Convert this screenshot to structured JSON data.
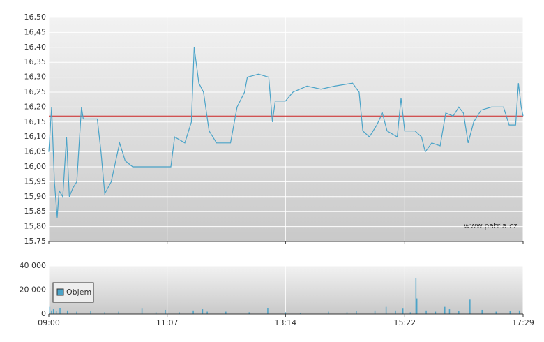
{
  "chart_data": [
    {
      "type": "line",
      "color": "#4aa3c8",
      "reference_line": 16.17,
      "reference_color": "#cc2222",
      "watermark": "www.patria.cz",
      "x": [
        "09:00",
        "09:03",
        "09:06",
        "09:09",
        "09:11",
        "09:15",
        "09:19",
        "09:22",
        "09:26",
        "09:30",
        "09:35",
        "09:37",
        "09:45",
        "09:52",
        "09:56",
        "10:00",
        "10:07",
        "10:16",
        "10:22",
        "10:30",
        "11:11",
        "11:15",
        "11:26",
        "11:33",
        "11:36",
        "11:41",
        "11:46",
        "11:52",
        "12:00",
        "12:15",
        "12:22",
        "12:30",
        "12:33",
        "12:45",
        "12:56",
        "13:00",
        "13:03",
        "13:14",
        "13:22",
        "13:37",
        "13:52",
        "14:07",
        "14:26",
        "14:33",
        "14:37",
        "14:44",
        "14:52",
        "14:58",
        "15:03",
        "15:14",
        "15:18",
        "15:22",
        "15:33",
        "15:40",
        "15:44",
        "15:51",
        "16:00",
        "16:06",
        "16:14",
        "16:20",
        "16:25",
        "16:30",
        "16:36",
        "16:44",
        "16:55",
        "17:08",
        "17:14",
        "17:21",
        "17:24",
        "17:27",
        "17:29"
      ],
      "values": [
        16.05,
        16.2,
        15.95,
        15.83,
        15.92,
        15.9,
        16.1,
        15.9,
        15.93,
        15.95,
        16.2,
        16.16,
        16.16,
        16.16,
        16.05,
        15.91,
        15.95,
        16.08,
        16.02,
        16.0,
        16.0,
        16.1,
        16.08,
        16.15,
        16.4,
        16.28,
        16.25,
        16.12,
        16.08,
        16.08,
        16.2,
        16.25,
        16.3,
        16.31,
        16.3,
        16.15,
        16.22,
        16.22,
        16.25,
        16.27,
        16.26,
        16.27,
        16.28,
        16.25,
        16.12,
        16.1,
        16.14,
        16.18,
        16.12,
        16.1,
        16.23,
        16.12,
        16.12,
        16.1,
        16.05,
        16.08,
        16.07,
        16.18,
        16.17,
        16.2,
        16.18,
        16.08,
        16.15,
        16.19,
        16.2,
        16.2,
        16.14,
        16.14,
        16.28,
        16.2,
        16.17
      ],
      "xlim": [
        "09:00",
        "17:29"
      ],
      "ylim": [
        15.75,
        16.5
      ],
      "yticks": [
        {
          "value": 15.75,
          "label": "15,75"
        },
        {
          "value": 15.8,
          "label": "15,80"
        },
        {
          "value": 15.85,
          "label": "15,85"
        },
        {
          "value": 15.9,
          "label": "15,90"
        },
        {
          "value": 15.95,
          "label": "15,95"
        },
        {
          "value": 16.0,
          "label": "16,00"
        },
        {
          "value": 16.05,
          "label": "16,05"
        },
        {
          "value": 16.1,
          "label": "16,10"
        },
        {
          "value": 16.15,
          "label": "16,15"
        },
        {
          "value": 16.2,
          "label": "16,20"
        },
        {
          "value": 16.25,
          "label": "16,25"
        },
        {
          "value": 16.3,
          "label": "16,30"
        },
        {
          "value": 16.35,
          "label": "16,35"
        },
        {
          "value": 16.4,
          "label": "16,40"
        },
        {
          "value": 16.45,
          "label": "16,45"
        },
        {
          "value": 16.5,
          "label": "16,50"
        }
      ],
      "grid": true
    },
    {
      "type": "bar",
      "x": [
        "09:01",
        "09:03",
        "09:05",
        "09:08",
        "09:12",
        "09:20",
        "09:30",
        "09:45",
        "10:00",
        "10:15",
        "10:40",
        "10:55",
        "11:05",
        "11:20",
        "11:35",
        "11:45",
        "11:50",
        "12:10",
        "12:35",
        "12:55",
        "13:14",
        "13:30",
        "14:00",
        "14:20",
        "14:30",
        "14:50",
        "15:02",
        "15:12",
        "15:20",
        "15:28",
        "15:34",
        "15:35",
        "15:45",
        "15:55",
        "16:05",
        "16:10",
        "16:20",
        "16:32",
        "16:45",
        "17:00",
        "17:15",
        "17:25"
      ],
      "series": [
        {
          "name": "Objem",
          "color": "#4aa3c8",
          "values": [
            6000,
            3000,
            4000,
            2500,
            5000,
            3000,
            2000,
            2500,
            1500,
            2000,
            4500,
            1500,
            3500,
            1500,
            3000,
            4000,
            2000,
            2000,
            1500,
            5000,
            1500,
            1000,
            2000,
            1500,
            2500,
            3000,
            6000,
            3000,
            4500,
            1500,
            30000,
            13000,
            3000,
            2000,
            6000,
            4000,
            2500,
            12000,
            3500,
            2000,
            2500,
            3000
          ]
        }
      ],
      "xlim": [
        "09:00",
        "17:29"
      ],
      "xticks": [
        "09:00",
        "11:07",
        "13:14",
        "15:22",
        "17:29"
      ],
      "ylim": [
        0,
        40000
      ],
      "yticks": [
        0,
        {
          "value": 20000,
          "label": "20 000"
        },
        {
          "value": 40000,
          "label": "40 000"
        }
      ],
      "legend": "lower-left",
      "grid": true
    }
  ]
}
